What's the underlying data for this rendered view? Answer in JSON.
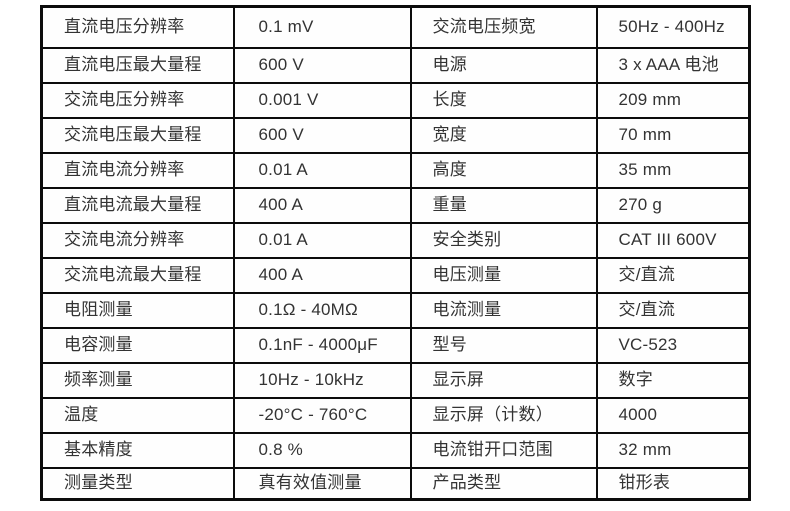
{
  "style": {
    "border_color": "#0c0c0c",
    "text_color": "#333333",
    "background_color": "#ffffff"
  },
  "table": {
    "rows": [
      {
        "label_left": "直流电压分辨率",
        "value_left": "0.1 mV",
        "label_right": "交流电压频宽",
        "value_right": "50Hz - 400Hz"
      },
      {
        "label_left": "直流电压最大量程",
        "value_left": "600 V",
        "label_right": "电源",
        "value_right": "3 x AAA 电池"
      },
      {
        "label_left": "交流电压分辨率",
        "value_left": "0.001 V",
        "label_right": "长度",
        "value_right": "209 mm"
      },
      {
        "label_left": "交流电压最大量程",
        "value_left": "600 V",
        "label_right": "宽度",
        "value_right": "70 mm"
      },
      {
        "label_left": "直流电流分辨率",
        "value_left": "0.01 A",
        "label_right": "高度",
        "value_right": "35 mm"
      },
      {
        "label_left": "直流电流最大量程",
        "value_left": "400 A",
        "label_right": "重量",
        "value_right": "270 g"
      },
      {
        "label_left": "交流电流分辨率",
        "value_left": "0.01 A",
        "label_right": "安全类别",
        "value_right": "CAT III 600V"
      },
      {
        "label_left": "交流电流最大量程",
        "value_left": "400 A",
        "label_right": "电压测量",
        "value_right": "交/直流"
      },
      {
        "label_left": "电阻测量",
        "value_left": "0.1Ω - 40MΩ",
        "label_right": "电流测量",
        "value_right": "交/直流"
      },
      {
        "label_left": "电容测量",
        "value_left": "0.1nF - 4000μF",
        "label_right": "型号",
        "value_right": "VC-523"
      },
      {
        "label_left": "频率测量",
        "value_left": "10Hz - 10kHz",
        "label_right": "显示屏",
        "value_right": "数字"
      },
      {
        "label_left": "温度",
        "value_left": "-20°C - 760°C",
        "label_right": "显示屏（计数）",
        "value_right": "4000"
      },
      {
        "label_left": "基本精度",
        "value_left": "0.8 %",
        "label_right": "电流钳开口范围",
        "value_right": "32 mm"
      },
      {
        "label_left": "测量类型",
        "value_left": "真有效值测量",
        "label_right": "产品类型",
        "value_right": "钳形表"
      }
    ]
  }
}
